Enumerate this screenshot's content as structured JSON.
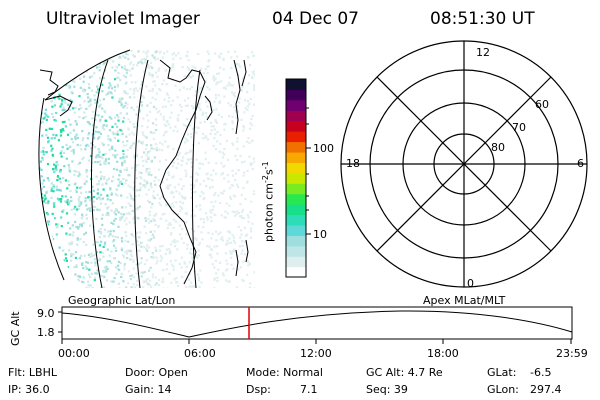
{
  "header": {
    "title": "Ultraviolet Imager",
    "date": "04 Dec 07",
    "time": "08:51:30 UT"
  },
  "colorbar": {
    "label": "photon cm",
    "label_exp1": "-2",
    "label_mid": "s",
    "label_exp2": "-1",
    "ticks": [
      "100",
      "10"
    ],
    "colors": [
      "#ffffff",
      "#dfeeee",
      "#bfe6e6",
      "#9fdede",
      "#5fd8d8",
      "#2fdcb8",
      "#18e08a",
      "#28e850",
      "#78ec20",
      "#c8e800",
      "#f0d800",
      "#f8a800",
      "#f07000",
      "#e82000",
      "#c80020",
      "#a00050",
      "#700070",
      "#40005a",
      "#101030"
    ]
  },
  "polar": {
    "mlt_labels": [
      "12",
      "18",
      "6",
      "0"
    ],
    "lat_labels": [
      "60",
      "70",
      "80"
    ]
  },
  "timeline": {
    "left_label": "Geographic Lat/Lon",
    "right_label": "Apex  MLat/MLT",
    "axis_title": "GC Alt",
    "y_ticks": [
      "9.0",
      "1.8"
    ],
    "x_ticks": [
      "00:00",
      "06:00",
      "12:00",
      "18:00",
      "23:59"
    ],
    "marker_color": "#e00000"
  },
  "status": {
    "flt": "Flt: LBHL",
    "ip": "IP: 36.0",
    "door": "Door: Open",
    "gain": "Gain: 14",
    "mode": "Mode: Normal",
    "dsp_label": "Dsp:",
    "dsp_value": "7.1",
    "gc_alt": "GC Alt: 4.7 Re",
    "seq": "Seq: 39",
    "glat_label": "GLat:",
    "glat_value": "-6.5",
    "glon_label": "GLon:",
    "glon_value": "297.4"
  }
}
